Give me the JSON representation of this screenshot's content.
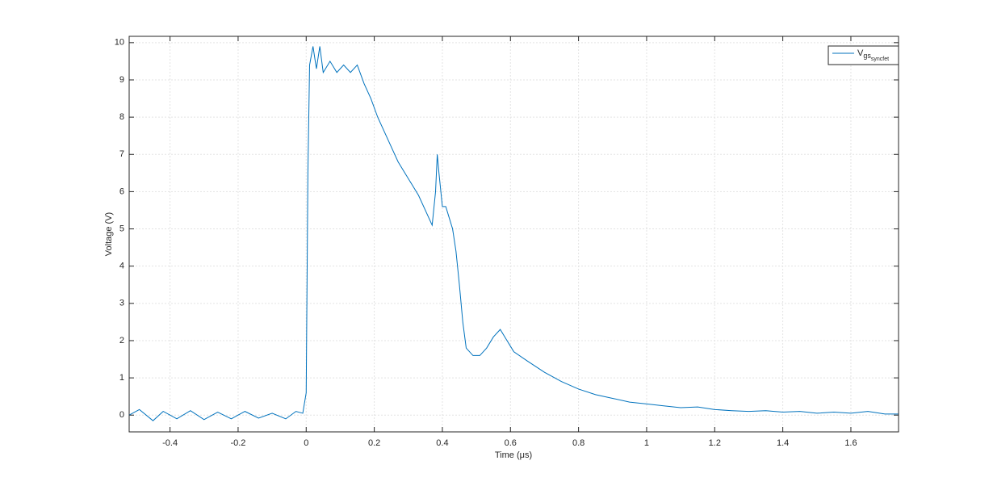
{
  "chart_data": {
    "type": "line",
    "xlabel": "Time (μs)",
    "ylabel": "Voltage (V)",
    "xlim": [
      -0.52,
      1.74
    ],
    "ylim": [
      -0.45,
      10.17
    ],
    "xticks": [
      -0.4,
      -0.2,
      0,
      0.2,
      0.4,
      0.6,
      0.8,
      1,
      1.2,
      1.4,
      1.6
    ],
    "yticks": [
      0,
      1,
      2,
      3,
      4,
      5,
      6,
      7,
      8,
      9,
      10
    ],
    "grid": true,
    "legend_loc": "northeast",
    "series": [
      {
        "name": "V",
        "name_subscript": "gs",
        "name_subsubscript": "syncfet",
        "color": "#0072bd",
        "x": [
          -0.52,
          -0.49,
          -0.45,
          -0.42,
          -0.38,
          -0.34,
          -0.3,
          -0.26,
          -0.22,
          -0.18,
          -0.14,
          -0.1,
          -0.06,
          -0.03,
          -0.01,
          0,
          0.005,
          0.01,
          0.02,
          0.03,
          0.04,
          0.05,
          0.07,
          0.09,
          0.11,
          0.13,
          0.15,
          0.17,
          0.19,
          0.21,
          0.23,
          0.25,
          0.27,
          0.29,
          0.31,
          0.33,
          0.35,
          0.37,
          0.38,
          0.385,
          0.39,
          0.4,
          0.41,
          0.42,
          0.43,
          0.44,
          0.45,
          0.46,
          0.47,
          0.49,
          0.51,
          0.53,
          0.55,
          0.57,
          0.59,
          0.61,
          0.65,
          0.7,
          0.75,
          0.8,
          0.85,
          0.9,
          0.95,
          1.0,
          1.05,
          1.1,
          1.15,
          1.2,
          1.25,
          1.3,
          1.35,
          1.4,
          1.45,
          1.5,
          1.55,
          1.6,
          1.65,
          1.7,
          1.74
        ],
        "values": [
          0,
          0.15,
          -0.15,
          0.1,
          -0.1,
          0.12,
          -0.12,
          0.08,
          -0.1,
          0.1,
          -0.08,
          0.05,
          -0.1,
          0.1,
          0.05,
          0.6,
          6.5,
          9.4,
          9.9,
          9.3,
          9.9,
          9.2,
          9.5,
          9.2,
          9.4,
          9.2,
          9.4,
          8.9,
          8.5,
          8.0,
          7.6,
          7.2,
          6.8,
          6.5,
          6.2,
          5.9,
          5.5,
          5.1,
          6.0,
          7.0,
          6.5,
          5.6,
          5.6,
          5.3,
          5.0,
          4.4,
          3.5,
          2.5,
          1.8,
          1.6,
          1.6,
          1.8,
          2.1,
          2.3,
          2.0,
          1.7,
          1.45,
          1.15,
          0.9,
          0.7,
          0.55,
          0.45,
          0.35,
          0.3,
          0.25,
          0.2,
          0.22,
          0.15,
          0.12,
          0.1,
          0.12,
          0.08,
          0.1,
          0.05,
          0.08,
          0.05,
          0.1,
          0.03,
          0.03
        ]
      }
    ]
  }
}
